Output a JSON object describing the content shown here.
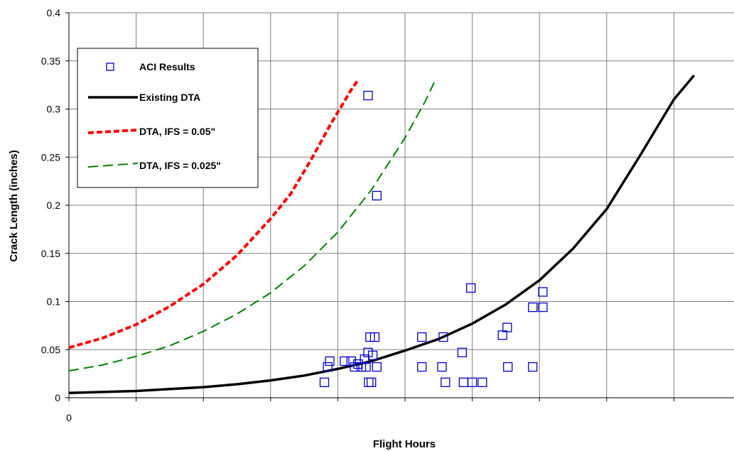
{
  "chart_data": {
    "type": "scatter",
    "title": "",
    "xlabel": "Flight Hours",
    "ylabel": "Crack Length (inches)",
    "xlim": [
      0,
      10
    ],
    "ylim": [
      0,
      0.4
    ],
    "x_ticks": [
      0,
      1,
      2,
      3,
      4,
      5,
      6,
      7,
      8,
      9,
      10
    ],
    "x_tick_labels": [
      "0",
      "",
      "",
      "",
      "",
      "",
      "",
      "",
      "",
      "",
      ""
    ],
    "y_ticks": [
      0,
      0.05,
      0.1,
      0.15,
      0.2,
      0.25,
      0.3,
      0.35,
      0.4
    ],
    "y_tick_labels": [
      "0",
      "0.05",
      "0.1",
      "0.15",
      "0.2",
      "0.25",
      "0.3",
      "0.35",
      "0.4"
    ],
    "grid": true,
    "legend_position": "top-left",
    "series": [
      {
        "name": "ACI Results",
        "kind": "markers",
        "marker": "open-square",
        "color": "#0000cc",
        "points": [
          [
            3.8,
            0.016
          ],
          [
            3.85,
            0.032
          ],
          [
            3.88,
            0.038
          ],
          [
            4.1,
            0.038
          ],
          [
            4.2,
            0.038
          ],
          [
            4.25,
            0.032
          ],
          [
            4.3,
            0.035
          ],
          [
            4.35,
            0.032
          ],
          [
            4.4,
            0.04
          ],
          [
            4.42,
            0.032
          ],
          [
            4.45,
            0.047
          ],
          [
            4.46,
            0.016
          ],
          [
            4.48,
            0.063
          ],
          [
            4.5,
            0.016
          ],
          [
            4.52,
            0.044
          ],
          [
            4.55,
            0.063
          ],
          [
            4.58,
            0.032
          ],
          [
            4.58,
            0.21
          ],
          [
            4.45,
            0.314
          ],
          [
            5.25,
            0.063
          ],
          [
            5.25,
            0.032
          ],
          [
            5.55,
            0.032
          ],
          [
            5.57,
            0.063
          ],
          [
            5.6,
            0.016
          ],
          [
            5.85,
            0.047
          ],
          [
            5.87,
            0.016
          ],
          [
            5.98,
            0.114
          ],
          [
            6.0,
            0.016
          ],
          [
            6.15,
            0.016
          ],
          [
            6.45,
            0.065
          ],
          [
            6.52,
            0.073
          ],
          [
            6.53,
            0.032
          ],
          [
            6.9,
            0.094
          ],
          [
            6.9,
            0.032
          ],
          [
            7.05,
            0.11
          ],
          [
            7.05,
            0.094
          ]
        ]
      },
      {
        "name": "Existing DTA",
        "kind": "line",
        "style": "solid",
        "color": "#000000",
        "points": [
          [
            0,
            0.005
          ],
          [
            0.5,
            0.006
          ],
          [
            1.0,
            0.007
          ],
          [
            1.5,
            0.009
          ],
          [
            2.0,
            0.011
          ],
          [
            2.5,
            0.014
          ],
          [
            3.0,
            0.018
          ],
          [
            3.5,
            0.023
          ],
          [
            4.0,
            0.03
          ],
          [
            4.5,
            0.038
          ],
          [
            5.0,
            0.049
          ],
          [
            5.5,
            0.061
          ],
          [
            6.0,
            0.077
          ],
          [
            6.5,
            0.097
          ],
          [
            7.0,
            0.122
          ],
          [
            7.5,
            0.155
          ],
          [
            8.0,
            0.196
          ],
          [
            8.5,
            0.252
          ],
          [
            9.0,
            0.31
          ],
          [
            9.3,
            0.335
          ]
        ]
      },
      {
        "name": "DTA, IFS = 0.05\"",
        "kind": "line",
        "style": "dotted",
        "color": "#ff0000",
        "points": [
          [
            0,
            0.052
          ],
          [
            0.5,
            0.062
          ],
          [
            1.0,
            0.076
          ],
          [
            1.5,
            0.095
          ],
          [
            2.0,
            0.118
          ],
          [
            2.5,
            0.148
          ],
          [
            3.0,
            0.186
          ],
          [
            3.3,
            0.212
          ],
          [
            3.6,
            0.247
          ],
          [
            3.9,
            0.285
          ],
          [
            4.2,
            0.32
          ],
          [
            4.3,
            0.33
          ]
        ]
      },
      {
        "name": "DTA, IFS = 0.025\"",
        "kind": "line",
        "style": "dashed",
        "color": "#008000",
        "points": [
          [
            0,
            0.028
          ],
          [
            0.5,
            0.034
          ],
          [
            1.0,
            0.043
          ],
          [
            1.5,
            0.054
          ],
          [
            2.0,
            0.069
          ],
          [
            2.5,
            0.087
          ],
          [
            3.0,
            0.109
          ],
          [
            3.5,
            0.137
          ],
          [
            4.0,
            0.172
          ],
          [
            4.5,
            0.216
          ],
          [
            5.0,
            0.27
          ],
          [
            5.3,
            0.308
          ],
          [
            5.45,
            0.33
          ]
        ]
      }
    ]
  },
  "legend": {
    "items": [
      "ACI Results",
      "Existing DTA",
      "DTA, IFS = 0.05\"",
      "DTA, IFS = 0.025\""
    ]
  }
}
